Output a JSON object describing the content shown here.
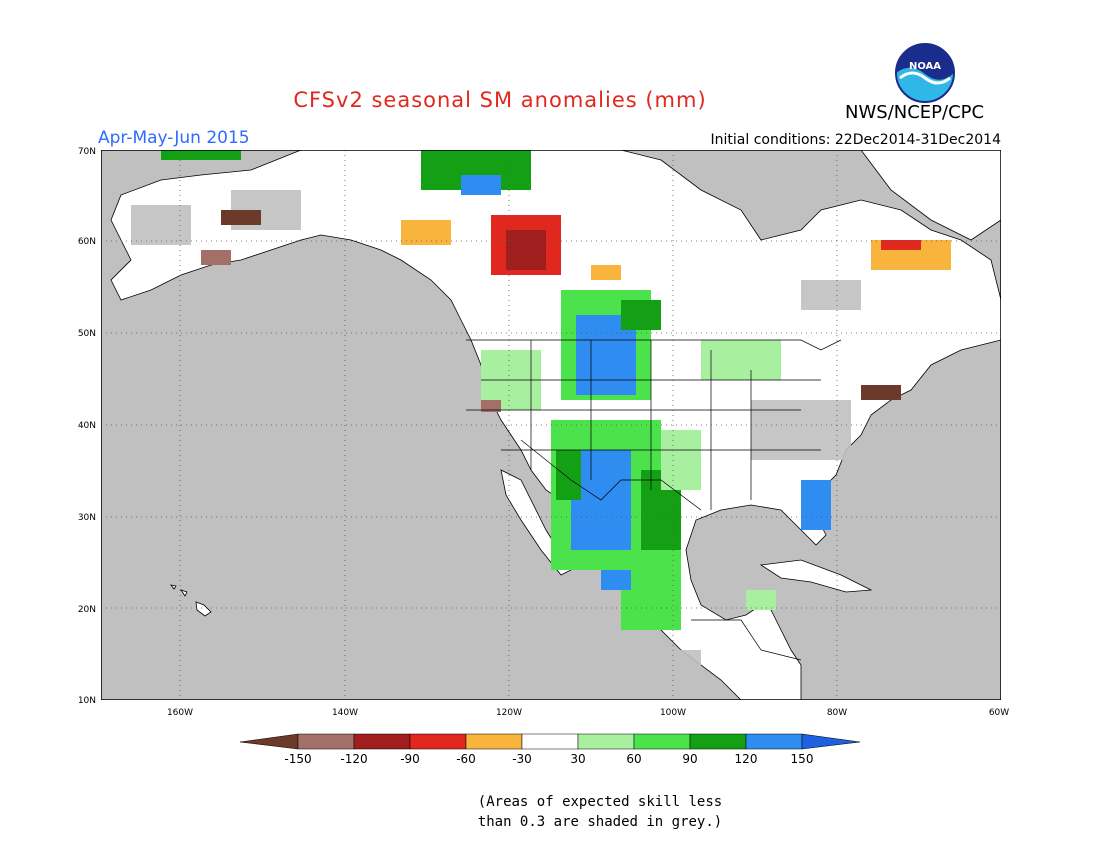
{
  "title": "CFSv2 seasonal SM anomalies (mm)",
  "period": "Apr-May-Jun 2015",
  "initial_conditions": "Initial conditions: 22Dec2014-31Dec2014",
  "agency": "NWS/NCEP/CPC",
  "logo_text": "NOAA",
  "lat_labels": [
    "70N",
    "60N",
    "50N",
    "40N",
    "30N",
    "20N",
    "10N"
  ],
  "lon_labels": [
    "160W",
    "140W",
    "120W",
    "100W",
    "80W",
    "60W"
  ],
  "legend": {
    "labels": [
      "-150",
      "-120",
      "-90",
      "-60",
      "-30",
      "30",
      "60",
      "90",
      "120",
      "150"
    ],
    "colors": [
      "#6b3a2a",
      "#a37068",
      "#a01e1e",
      "#e0281e",
      "#f8b43c",
      "#ffffff",
      "#a8f0a0",
      "#4ce24c",
      "#14a014",
      "#2f8cf0",
      "#1e60e0"
    ]
  },
  "note_lines": [
    "(Areas of expected skill less",
    "than 0.3 are shaded in grey.)"
  ]
}
